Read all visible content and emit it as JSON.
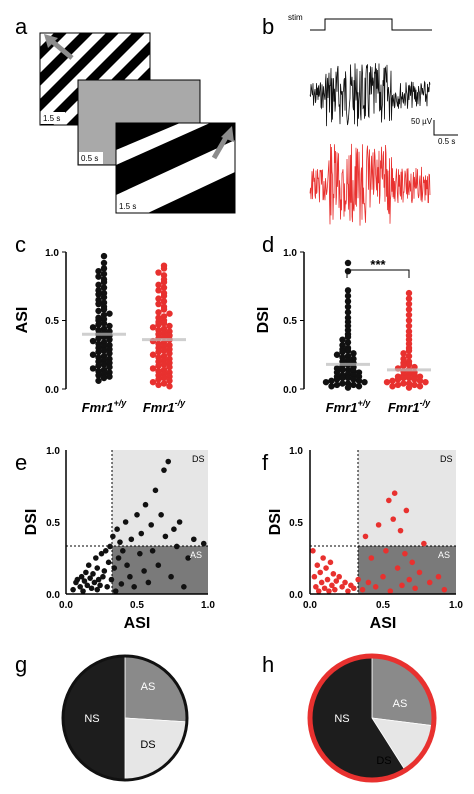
{
  "panels": {
    "a": {
      "letter": "a",
      "stim_times": [
        "1.5 s",
        "0.5 s",
        "1.5 s"
      ]
    },
    "b": {
      "letter": "b",
      "stim_label": "stim",
      "scale_voltage": "50 µV",
      "scale_time": "0.5 s"
    },
    "c": {
      "letter": "c",
      "ylabel": "ASI",
      "yticks": [
        "0.0",
        "0.5",
        "1.0"
      ],
      "group1": "Fmr1",
      "group1_sup": "+/y",
      "group2": "Fmr1",
      "group2_sup": "-/y"
    },
    "d": {
      "letter": "d",
      "ylabel": "DSI",
      "yticks": [
        "0.0",
        "0.5",
        "1.0"
      ],
      "group1": "Fmr1",
      "group1_sup": "+/y",
      "group2": "Fmr1",
      "group2_sup": "-/y",
      "significance": "***"
    },
    "e": {
      "letter": "e",
      "xlabel": "ASI",
      "ylabel": "DSI",
      "xticks": [
        "0.0",
        "0.5",
        "1.0"
      ],
      "yticks": [
        "0.0",
        "0.5",
        "1.0"
      ],
      "ds_label": "DS",
      "as_label": "AS"
    },
    "f": {
      "letter": "f",
      "xlabel": "ASI",
      "ylabel": "DSI",
      "xticks": [
        "0.0",
        "0.5",
        "1.0"
      ],
      "yticks": [
        "0.0",
        "0.5",
        "1.0"
      ],
      "ds_label": "DS",
      "as_label": "AS"
    },
    "g": {
      "letter": "g",
      "labels": [
        "NS",
        "AS",
        "DS"
      ]
    },
    "h": {
      "letter": "h",
      "labels": [
        "NS",
        "AS",
        "DS"
      ]
    }
  },
  "colors": {
    "wt": "#111111",
    "ko": "#e8312f",
    "dark_region": "#7a7a7a",
    "light_region": "#e6e6e6"
  },
  "chart_data": [
    {
      "type": "scatter",
      "panel": "c",
      "ylabel": "ASI",
      "ylim": [
        0,
        1
      ],
      "categories": [
        "Fmr1+/y",
        "Fmr1-/y"
      ],
      "series": [
        {
          "name": "Fmr1+/y",
          "values": [
            0.97,
            0.92,
            0.88,
            0.86,
            0.84,
            0.82,
            0.8,
            0.78,
            0.76,
            0.74,
            0.72,
            0.7,
            0.69,
            0.67,
            0.65,
            0.63,
            0.62,
            0.6,
            0.58,
            0.57,
            0.55,
            0.54,
            0.52,
            0.51,
            0.5,
            0.48,
            0.47,
            0.46,
            0.45,
            0.44,
            0.43,
            0.42,
            0.41,
            0.4,
            0.39,
            0.38,
            0.37,
            0.36,
            0.35,
            0.34,
            0.33,
            0.32,
            0.31,
            0.3,
            0.29,
            0.28,
            0.27,
            0.26,
            0.25,
            0.24,
            0.23,
            0.22,
            0.21,
            0.2,
            0.19,
            0.18,
            0.17,
            0.16,
            0.15,
            0.14,
            0.13,
            0.12,
            0.11,
            0.1,
            0.09,
            0.08,
            0.06
          ]
        },
        {
          "name": "Fmr1-/y",
          "values": [
            0.9,
            0.88,
            0.85,
            0.83,
            0.8,
            0.78,
            0.76,
            0.74,
            0.72,
            0.7,
            0.68,
            0.66,
            0.64,
            0.62,
            0.6,
            0.58,
            0.56,
            0.55,
            0.53,
            0.52,
            0.5,
            0.49,
            0.48,
            0.47,
            0.46,
            0.45,
            0.44,
            0.43,
            0.42,
            0.41,
            0.4,
            0.39,
            0.38,
            0.37,
            0.36,
            0.35,
            0.34,
            0.33,
            0.32,
            0.31,
            0.3,
            0.29,
            0.28,
            0.27,
            0.26,
            0.25,
            0.24,
            0.23,
            0.22,
            0.21,
            0.2,
            0.19,
            0.18,
            0.17,
            0.16,
            0.15,
            0.14,
            0.13,
            0.12,
            0.11,
            0.1,
            0.09,
            0.08,
            0.07,
            0.06,
            0.05,
            0.04,
            0.03,
            0.02
          ]
        }
      ]
    },
    {
      "type": "scatter",
      "panel": "d",
      "ylabel": "DSI",
      "ylim": [
        0,
        1
      ],
      "categories": [
        "Fmr1+/y",
        "Fmr1-/y"
      ],
      "series": [
        {
          "name": "Fmr1+/y",
          "values": [
            0.92,
            0.86,
            0.72,
            0.68,
            0.64,
            0.6,
            0.56,
            0.52,
            0.49,
            0.46,
            0.43,
            0.4,
            0.38,
            0.36,
            0.34,
            0.32,
            0.3,
            0.29,
            0.28,
            0.27,
            0.26,
            0.25,
            0.24,
            0.23,
            0.22,
            0.21,
            0.2,
            0.19,
            0.18,
            0.17,
            0.16,
            0.15,
            0.14,
            0.14,
            0.13,
            0.12,
            0.12,
            0.11,
            0.1,
            0.1,
            0.09,
            0.09,
            0.08,
            0.08,
            0.07,
            0.07,
            0.06,
            0.06,
            0.05,
            0.05,
            0.04,
            0.04,
            0.03,
            0.03,
            0.02,
            0.02,
            0.01
          ]
        },
        {
          "name": "Fmr1-/y",
          "values": [
            0.7,
            0.66,
            0.62,
            0.58,
            0.54,
            0.5,
            0.46,
            0.42,
            0.39,
            0.36,
            0.33,
            0.3,
            0.28,
            0.26,
            0.24,
            0.22,
            0.2,
            0.19,
            0.18,
            0.17,
            0.16,
            0.15,
            0.14,
            0.13,
            0.12,
            0.11,
            0.1,
            0.1,
            0.09,
            0.09,
            0.08,
            0.08,
            0.07,
            0.07,
            0.06,
            0.06,
            0.05,
            0.05,
            0.04,
            0.04,
            0.03,
            0.03,
            0.02,
            0.02,
            0.01
          ]
        }
      ]
    },
    {
      "type": "scatter",
      "panel": "e",
      "xlabel": "ASI",
      "ylabel": "DSI",
      "xlim": [
        0,
        1
      ],
      "ylim": [
        0,
        1
      ],
      "thresholds": {
        "asi": 0.33,
        "dsi": 0.33
      },
      "points": [
        [
          0.05,
          0.03
        ],
        [
          0.07,
          0.08
        ],
        [
          0.08,
          0.1
        ],
        [
          0.1,
          0.05
        ],
        [
          0.11,
          0.12
        ],
        [
          0.12,
          0.02
        ],
        [
          0.13,
          0.09
        ],
        [
          0.14,
          0.15
        ],
        [
          0.15,
          0.06
        ],
        [
          0.16,
          0.2
        ],
        [
          0.17,
          0.11
        ],
        [
          0.18,
          0.04
        ],
        [
          0.19,
          0.14
        ],
        [
          0.2,
          0.08
        ],
        [
          0.21,
          0.25
        ],
        [
          0.22,
          0.18
        ],
        [
          0.22,
          0.03
        ],
        [
          0.23,
          0.1
        ],
        [
          0.24,
          0.06
        ],
        [
          0.25,
          0.28
        ],
        [
          0.26,
          0.12
        ],
        [
          0.27,
          0.16
        ],
        [
          0.28,
          0.3
        ],
        [
          0.29,
          0.05
        ],
        [
          0.3,
          0.22
        ],
        [
          0.31,
          0.33
        ],
        [
          0.32,
          0.1
        ],
        [
          0.33,
          0.4
        ],
        [
          0.34,
          0.18
        ],
        [
          0.35,
          0.02
        ],
        [
          0.36,
          0.45
        ],
        [
          0.37,
          0.25
        ],
        [
          0.38,
          0.36
        ],
        [
          0.39,
          0.07
        ],
        [
          0.4,
          0.3
        ],
        [
          0.42,
          0.5
        ],
        [
          0.43,
          0.2
        ],
        [
          0.45,
          0.12
        ],
        [
          0.46,
          0.38
        ],
        [
          0.48,
          0.05
        ],
        [
          0.5,
          0.55
        ],
        [
          0.52,
          0.28
        ],
        [
          0.53,
          0.42
        ],
        [
          0.55,
          0.16
        ],
        [
          0.56,
          0.62
        ],
        [
          0.58,
          0.08
        ],
        [
          0.6,
          0.48
        ],
        [
          0.61,
          0.3
        ],
        [
          0.63,
          0.72
        ],
        [
          0.65,
          0.2
        ],
        [
          0.67,
          0.55
        ],
        [
          0.69,
          0.86
        ],
        [
          0.7,
          0.4
        ],
        [
          0.72,
          0.92
        ],
        [
          0.74,
          0.12
        ],
        [
          0.76,
          0.45
        ],
        [
          0.78,
          0.33
        ],
        [
          0.8,
          0.5
        ],
        [
          0.83,
          0.05
        ],
        [
          0.86,
          0.25
        ],
        [
          0.9,
          0.38
        ],
        [
          0.97,
          0.35
        ]
      ]
    },
    {
      "type": "scatter",
      "panel": "f",
      "xlabel": "ASI",
      "ylabel": "DSI",
      "xlim": [
        0,
        1
      ],
      "ylim": [
        0,
        1
      ],
      "thresholds": {
        "asi": 0.33,
        "dsi": 0.33
      },
      "points": [
        [
          0.02,
          0.3
        ],
        [
          0.03,
          0.12
        ],
        [
          0.04,
          0.05
        ],
        [
          0.05,
          0.2
        ],
        [
          0.06,
          0.02
        ],
        [
          0.07,
          0.15
        ],
        [
          0.08,
          0.08
        ],
        [
          0.09,
          0.25
        ],
        [
          0.1,
          0.04
        ],
        [
          0.11,
          0.18
        ],
        [
          0.12,
          0.1
        ],
        [
          0.13,
          0.02
        ],
        [
          0.14,
          0.22
        ],
        [
          0.15,
          0.06
        ],
        [
          0.16,
          0.14
        ],
        [
          0.17,
          0.03
        ],
        [
          0.18,
          0.09
        ],
        [
          0.2,
          0.12
        ],
        [
          0.22,
          0.05
        ],
        [
          0.24,
          0.08
        ],
        [
          0.26,
          0.02
        ],
        [
          0.28,
          0.06
        ],
        [
          0.3,
          0.04
        ],
        [
          0.33,
          0.1
        ],
        [
          0.36,
          0.03
        ],
        [
          0.38,
          0.4
        ],
        [
          0.4,
          0.08
        ],
        [
          0.42,
          0.25
        ],
        [
          0.45,
          0.05
        ],
        [
          0.47,
          0.48
        ],
        [
          0.5,
          0.12
        ],
        [
          0.52,
          0.3
        ],
        [
          0.54,
          0.65
        ],
        [
          0.55,
          0.02
        ],
        [
          0.57,
          0.52
        ],
        [
          0.58,
          0.7
        ],
        [
          0.6,
          0.18
        ],
        [
          0.62,
          0.44
        ],
        [
          0.63,
          0.06
        ],
        [
          0.65,
          0.28
        ],
        [
          0.66,
          0.58
        ],
        [
          0.68,
          0.1
        ],
        [
          0.7,
          0.22
        ],
        [
          0.72,
          0.04
        ],
        [
          0.75,
          0.15
        ],
        [
          0.78,
          0.35
        ],
        [
          0.82,
          0.08
        ],
        [
          0.88,
          0.12
        ],
        [
          0.92,
          0.03
        ]
      ]
    },
    {
      "type": "pie",
      "panel": "g",
      "categories": [
        "NS",
        "AS",
        "DS"
      ],
      "values": [
        0.5,
        0.26,
        0.24
      ]
    },
    {
      "type": "pie",
      "panel": "h",
      "categories": [
        "NS",
        "AS",
        "DS"
      ],
      "values": [
        0.59,
        0.27,
        0.14
      ]
    }
  ]
}
